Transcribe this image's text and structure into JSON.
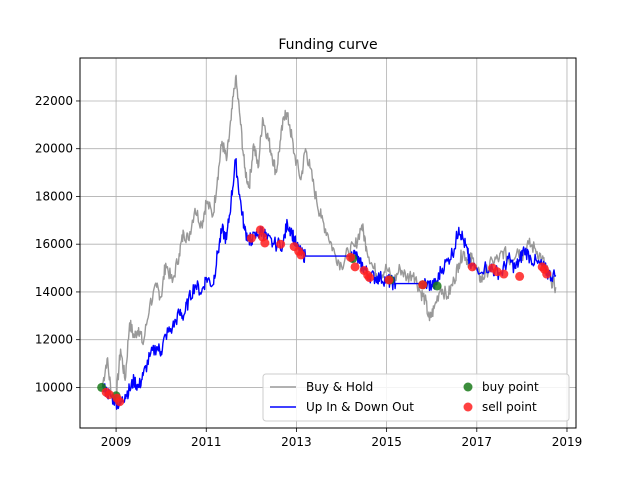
{
  "chart_data": {
    "type": "line",
    "title": "Funding curve",
    "xlabel": "",
    "ylabel": "",
    "xlim": [
      2008.2,
      2019.2
    ],
    "ylim": [
      8300,
      23800
    ],
    "xticks": [
      2009,
      2011,
      2013,
      2015,
      2017,
      2019
    ],
    "yticks": [
      10000,
      12000,
      14000,
      16000,
      18000,
      20000,
      22000
    ],
    "grid": true,
    "legend_placement": "lower-right",
    "series": [
      {
        "name": "Buy & Hold",
        "color": "#999999",
        "points": [
          [
            2008.7,
            10100
          ],
          [
            2008.8,
            11200
          ],
          [
            2008.9,
            9700
          ],
          [
            2009.0,
            9500
          ],
          [
            2009.1,
            11600
          ],
          [
            2009.2,
            10300
          ],
          [
            2009.3,
            12700
          ],
          [
            2009.4,
            12100
          ],
          [
            2009.5,
            12500
          ],
          [
            2009.6,
            11800
          ],
          [
            2009.75,
            13500
          ],
          [
            2009.9,
            14200
          ],
          [
            2010.0,
            13800
          ],
          [
            2010.1,
            15200
          ],
          [
            2010.25,
            14400
          ],
          [
            2010.4,
            15600
          ],
          [
            2010.5,
            16500
          ],
          [
            2010.6,
            16200
          ],
          [
            2010.75,
            17500
          ],
          [
            2010.9,
            16800
          ],
          [
            2011.0,
            17800
          ],
          [
            2011.15,
            17200
          ],
          [
            2011.25,
            18800
          ],
          [
            2011.35,
            20300
          ],
          [
            2011.45,
            19500
          ],
          [
            2011.55,
            21200
          ],
          [
            2011.65,
            23000
          ],
          [
            2011.75,
            21300
          ],
          [
            2011.85,
            19200
          ],
          [
            2011.95,
            18400
          ],
          [
            2012.05,
            20200
          ],
          [
            2012.15,
            19200
          ],
          [
            2012.25,
            21300
          ],
          [
            2012.35,
            20600
          ],
          [
            2012.45,
            19800
          ],
          [
            2012.55,
            19000
          ],
          [
            2012.65,
            20400
          ],
          [
            2012.75,
            21600
          ],
          [
            2012.85,
            21000
          ],
          [
            2012.95,
            19800
          ],
          [
            2013.1,
            18700
          ],
          [
            2013.2,
            20000
          ],
          [
            2013.3,
            19200
          ],
          [
            2013.45,
            17800
          ],
          [
            2013.55,
            17100
          ],
          [
            2013.7,
            16400
          ],
          [
            2013.85,
            15600
          ],
          [
            2014.0,
            15100
          ],
          [
            2014.15,
            15700
          ],
          [
            2014.3,
            15900
          ],
          [
            2014.45,
            16800
          ],
          [
            2014.55,
            15900
          ],
          [
            2014.7,
            15000
          ],
          [
            2014.85,
            14700
          ],
          [
            2015.0,
            15000
          ],
          [
            2015.15,
            14400
          ],
          [
            2015.3,
            15000
          ],
          [
            2015.45,
            14600
          ],
          [
            2015.6,
            14800
          ],
          [
            2015.75,
            14000
          ],
          [
            2015.85,
            13700
          ],
          [
            2015.95,
            12800
          ],
          [
            2016.05,
            13300
          ],
          [
            2016.2,
            14200
          ],
          [
            2016.35,
            13800
          ],
          [
            2016.5,
            14500
          ],
          [
            2016.6,
            15200
          ],
          [
            2016.7,
            15700
          ],
          [
            2016.8,
            15300
          ],
          [
            2016.9,
            15400
          ],
          [
            2017.0,
            14900
          ],
          [
            2017.1,
            14500
          ],
          [
            2017.2,
            14800
          ],
          [
            2017.35,
            15300
          ],
          [
            2017.5,
            15400
          ],
          [
            2017.6,
            15700
          ],
          [
            2017.75,
            15300
          ],
          [
            2017.9,
            15800
          ],
          [
            2018.0,
            15500
          ],
          [
            2018.15,
            16000
          ],
          [
            2018.3,
            15800
          ],
          [
            2018.45,
            15400
          ],
          [
            2018.55,
            14900
          ],
          [
            2018.65,
            14500
          ],
          [
            2018.75,
            14200
          ]
        ]
      },
      {
        "name": "Up In & Down Out",
        "color": "#0000ff",
        "points": [
          [
            2008.7,
            10000
          ],
          [
            2008.8,
            9800
          ],
          [
            2008.9,
            9600
          ],
          [
            2009.0,
            9400
          ],
          [
            2009.1,
            9300
          ],
          [
            2009.2,
            9700
          ],
          [
            2009.3,
            9900
          ],
          [
            2009.4,
            10300
          ],
          [
            2009.5,
            10000
          ],
          [
            2009.6,
            10500
          ],
          [
            2009.75,
            11300
          ],
          [
            2009.9,
            11700
          ],
          [
            2010.0,
            11500
          ],
          [
            2010.1,
            12200
          ],
          [
            2010.25,
            12500
          ],
          [
            2010.4,
            13100
          ],
          [
            2010.5,
            13000
          ],
          [
            2010.6,
            13600
          ],
          [
            2010.75,
            14300
          ],
          [
            2010.9,
            14000
          ],
          [
            2011.0,
            14600
          ],
          [
            2011.15,
            14300
          ],
          [
            2011.25,
            15600
          ],
          [
            2011.35,
            16600
          ],
          [
            2011.45,
            16200
          ],
          [
            2011.55,
            17800
          ],
          [
            2011.65,
            19500
          ],
          [
            2011.75,
            17900
          ],
          [
            2011.85,
            16600
          ],
          [
            2011.95,
            16200
          ],
          [
            2012.0,
            16200
          ],
          [
            2012.15,
            16400
          ],
          [
            2012.25,
            16600
          ],
          [
            2012.35,
            16200
          ],
          [
            2012.5,
            16000
          ],
          [
            2012.7,
            16000
          ],
          [
            2012.8,
            16900
          ],
          [
            2012.9,
            16500
          ],
          [
            2013.0,
            15900
          ],
          [
            2013.1,
            15600
          ],
          [
            2013.2,
            15500
          ],
          [
            2014.2,
            15500
          ],
          [
            2014.3,
            15600
          ],
          [
            2014.4,
            15200
          ],
          [
            2014.5,
            15000
          ],
          [
            2014.6,
            14700
          ],
          [
            2014.75,
            14600
          ],
          [
            2014.85,
            14600
          ],
          [
            2015.0,
            14500
          ],
          [
            2015.1,
            14400
          ],
          [
            2015.2,
            14350
          ],
          [
            2015.8,
            14350
          ],
          [
            2015.9,
            14300
          ],
          [
            2016.0,
            14300
          ],
          [
            2016.1,
            14300
          ],
          [
            2016.2,
            14900
          ],
          [
            2016.35,
            15300
          ],
          [
            2016.5,
            15800
          ],
          [
            2016.6,
            16700
          ],
          [
            2016.7,
            16200
          ],
          [
            2016.8,
            15600
          ],
          [
            2016.85,
            15100
          ],
          [
            2017.0,
            15000
          ],
          [
            2017.3,
            15050
          ],
          [
            2017.4,
            14850
          ],
          [
            2017.55,
            14800
          ],
          [
            2017.7,
            15400
          ],
          [
            2017.85,
            15000
          ],
          [
            2017.95,
            15300
          ],
          [
            2018.05,
            15800
          ],
          [
            2018.2,
            15400
          ],
          [
            2018.35,
            15200
          ],
          [
            2018.5,
            15000
          ],
          [
            2018.6,
            14700
          ],
          [
            2018.75,
            14700
          ]
        ]
      }
    ],
    "markers": [
      {
        "name": "buy point",
        "color": "#1a7a1a",
        "points": [
          [
            2008.68,
            10000
          ],
          [
            2009.0,
            9650
          ],
          [
            2014.25,
            15400
          ],
          [
            2015.08,
            14500
          ],
          [
            2015.8,
            14300
          ],
          [
            2016.12,
            14250
          ]
        ]
      },
      {
        "name": "sell point",
        "color": "#ff2020",
        "points": [
          [
            2008.78,
            9800
          ],
          [
            2008.85,
            9700
          ],
          [
            2009.02,
            9550
          ],
          [
            2009.08,
            9400
          ],
          [
            2012.0,
            16250
          ],
          [
            2012.2,
            16600
          ],
          [
            2012.25,
            16300
          ],
          [
            2012.3,
            16050
          ],
          [
            2012.65,
            16000
          ],
          [
            2012.95,
            15900
          ],
          [
            2013.05,
            15700
          ],
          [
            2013.1,
            15550
          ],
          [
            2014.2,
            15450
          ],
          [
            2014.3,
            15050
          ],
          [
            2014.5,
            14900
          ],
          [
            2014.58,
            14700
          ],
          [
            2014.62,
            14600
          ],
          [
            2015.05,
            14500
          ],
          [
            2015.8,
            14300
          ],
          [
            2016.9,
            15050
          ],
          [
            2017.35,
            15000
          ],
          [
            2017.45,
            14850
          ],
          [
            2017.6,
            14750
          ],
          [
            2017.95,
            14650
          ],
          [
            2018.45,
            15050
          ],
          [
            2018.5,
            14950
          ],
          [
            2018.55,
            14750
          ]
        ]
      }
    ]
  },
  "legend": {
    "items": [
      {
        "label": "Buy & Hold",
        "kind": "line",
        "color": "#999999"
      },
      {
        "label": "Up In & Down Out",
        "kind": "line",
        "color": "#0000ff"
      },
      {
        "label": "buy point",
        "kind": "marker",
        "color": "#1a7a1a"
      },
      {
        "label": "sell point",
        "kind": "marker",
        "color": "#ff2020"
      }
    ]
  }
}
